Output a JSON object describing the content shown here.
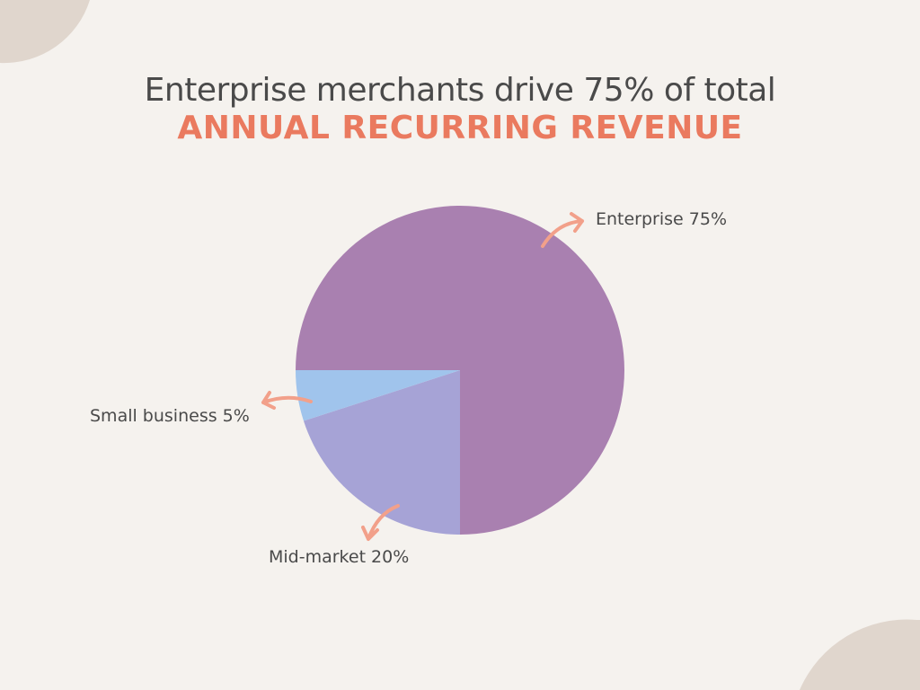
{
  "title": "Enterprise merchants drive 75% of total",
  "subtitle": "ANNUAL RECURRING REVENUE",
  "chart_data": {
    "type": "pie",
    "categories": [
      "Enterprise",
      "Mid-market",
      "Small business"
    ],
    "values": [
      75,
      20,
      5
    ],
    "labels": [
      "Enterprise 75%",
      "Mid-market 20%",
      "Small business 5%"
    ],
    "colors": [
      "#a980b0",
      "#a6a3d6",
      "#a0c4ec"
    ],
    "start_position": "9 o'clock, clockwise",
    "legend": "none",
    "annotation_color": "#f2a08a"
  }
}
